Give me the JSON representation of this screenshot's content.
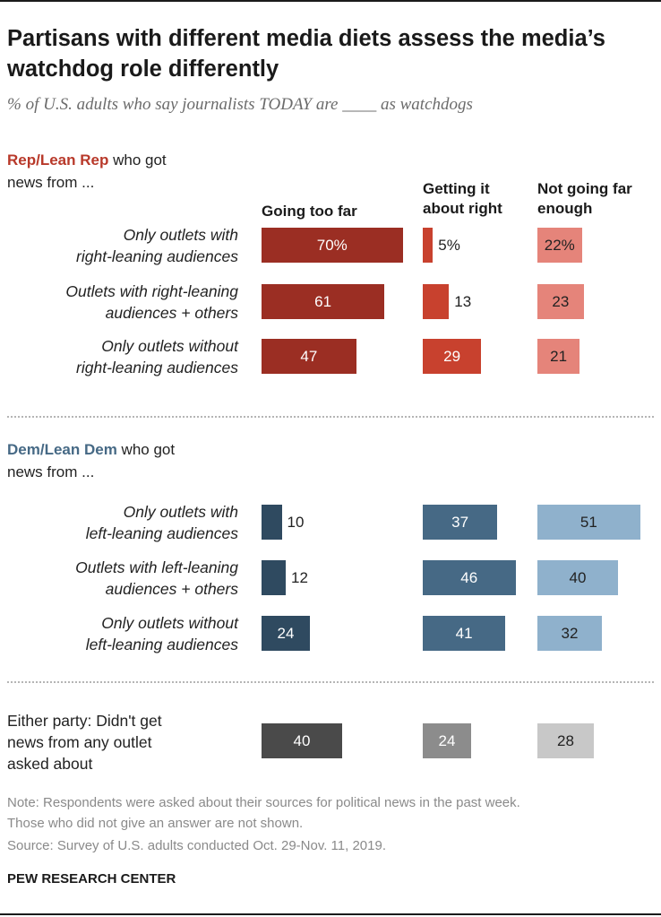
{
  "title": "Partisans with different media diets assess the media’s watchdog role differently",
  "subtitle": "% of U.S. adults who say journalists TODAY are ____ as watchdogs",
  "columns": [
    {
      "label_line1": "Going too far",
      "label_line2": ""
    },
    {
      "label_line1": "Getting it",
      "label_line2": "about right"
    },
    {
      "label_line1": "Not going far",
      "label_line2": "enough"
    }
  ],
  "sections": [
    {
      "party": "Rep/Lean Rep",
      "rest": " who got",
      "line2": "news from ..."
    },
    {
      "party": "Dem/Lean Dem",
      "rest": " who got",
      "line2": "news from ..."
    }
  ],
  "colors": {
    "rep": [
      "#9b2e23",
      "#c8412e",
      "#e5847a"
    ],
    "dem": [
      "#2f4a60",
      "#466985",
      "#8fb1cc"
    ],
    "either": [
      "#4a4a4a",
      "#8c8c8c",
      "#c8c8c8"
    ],
    "rep_party_text": "#b8392a",
    "dem_party_text": "#466985"
  },
  "chart_data": {
    "type": "bar",
    "orientation": "horizontal",
    "title": "Partisans with different media diets assess the media’s watchdog role differently",
    "series_names": [
      "Going too far",
      "Getting it about right",
      "Not going far enough"
    ],
    "rows": [
      {
        "group": "rep",
        "label_line1": "Only outlets with",
        "label_line2": "right-leaning audiences",
        "values": [
          70,
          5,
          22
        ],
        "value_labels": [
          "70%",
          "5%",
          "22%"
        ]
      },
      {
        "group": "rep",
        "label_line1": "Outlets with right-leaning",
        "label_line2": "audiences + others",
        "values": [
          61,
          13,
          23
        ],
        "value_labels": [
          "61",
          "13",
          "23"
        ]
      },
      {
        "group": "rep",
        "label_line1": "Only outlets without",
        "label_line2": "right-leaning audiences",
        "values": [
          47,
          29,
          21
        ],
        "value_labels": [
          "47",
          "29",
          "21"
        ]
      },
      {
        "group": "dem",
        "label_line1": "Only outlets with",
        "label_line2": "left-leaning audiences",
        "values": [
          10,
          37,
          51
        ],
        "value_labels": [
          "10",
          "37",
          "51"
        ]
      },
      {
        "group": "dem",
        "label_line1": "Outlets with left-leaning",
        "label_line2": "audiences + others",
        "values": [
          12,
          46,
          40
        ],
        "value_labels": [
          "12",
          "46",
          "40"
        ]
      },
      {
        "group": "dem",
        "label_line1": "Only outlets without",
        "label_line2": "left-leaning audiences",
        "values": [
          24,
          41,
          32
        ],
        "value_labels": [
          "24",
          "41",
          "32"
        ]
      },
      {
        "group": "either",
        "label_line1": "Either party: Didn't get",
        "label_line2": "news from any outlet",
        "label_line3": "asked about",
        "values": [
          40,
          24,
          28
        ],
        "value_labels": [
          "40",
          "24",
          "28"
        ]
      }
    ]
  },
  "note_line1": "Note: Respondents were asked about their sources for political news in the past week.",
  "note_line2": "Those who did not give an answer are not shown.",
  "source": "Source: Survey of U.S. adults conducted Oct. 29-Nov. 11, 2019.",
  "brand": "PEW RESEARCH CENTER"
}
